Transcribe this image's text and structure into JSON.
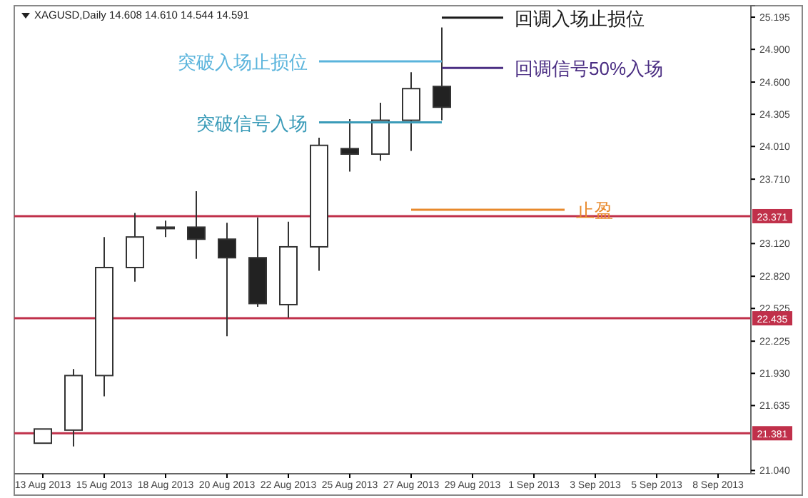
{
  "chart_data": {
    "type": "candlestick",
    "title": "XAGUSD,Daily  14.608 14.610 14.544 14.591",
    "categories": [
      "13 Aug 2013",
      null,
      "15 Aug 2013",
      null,
      "18 Aug 2013",
      null,
      "20 Aug 2013",
      null,
      "22 Aug 2013",
      null,
      "25 Aug 2013",
      null,
      "27 Aug 2013",
      null,
      "29 Aug 2013",
      null,
      "1 Sep 2013",
      null,
      "3 Sep 2013",
      null,
      "5 Sep 2013",
      null,
      "8 Sep 2013"
    ],
    "ohlc": [
      [
        21.29,
        21.42,
        21.29,
        21.42
      ],
      [
        21.41,
        21.97,
        21.26,
        21.91
      ],
      [
        21.91,
        23.18,
        21.72,
        22.9
      ],
      [
        22.9,
        23.4,
        22.77,
        23.18
      ],
      [
        23.27,
        23.33,
        23.18,
        23.27
      ],
      [
        23.27,
        23.6,
        22.98,
        23.16
      ],
      [
        23.16,
        23.31,
        22.27,
        22.99
      ],
      [
        22.99,
        23.36,
        22.54,
        22.57
      ],
      [
        22.56,
        23.32,
        22.44,
        23.09
      ],
      [
        23.09,
        24.09,
        22.87,
        24.02
      ],
      [
        23.99,
        24.26,
        23.78,
        23.94
      ],
      [
        23.94,
        24.41,
        23.88,
        24.25
      ],
      [
        24.25,
        24.69,
        23.97,
        24.54
      ],
      [
        24.56,
        25.1,
        24.25,
        24.37
      ],
      null,
      null,
      null,
      null,
      null,
      null,
      null,
      null,
      null
    ],
    "series": [
      {
        "type": "line",
        "name": "突破入场止损位",
        "color": "#5ab4dc",
        "values": [
          null,
          null,
          null,
          null,
          null,
          null,
          null,
          null,
          null,
          24.79,
          24.79,
          24.79,
          24.79,
          24.79,
          null,
          null,
          null,
          null,
          null,
          null,
          null,
          null,
          null
        ]
      },
      {
        "type": "line",
        "name": "突破信号入场",
        "color": "#3a9bb8",
        "values": [
          null,
          null,
          null,
          null,
          null,
          null,
          null,
          null,
          null,
          24.23,
          24.23,
          24.23,
          24.23,
          24.23,
          null,
          null,
          null,
          null,
          null,
          null,
          null,
          null,
          null
        ]
      },
      {
        "type": "line",
        "name": "回调入场止损位",
        "color": "#1a1a1a",
        "values": [
          null,
          null,
          null,
          null,
          null,
          null,
          null,
          null,
          null,
          null,
          null,
          null,
          null,
          25.19,
          25.19,
          25.19,
          null,
          null,
          null,
          null,
          null,
          null,
          null
        ]
      },
      {
        "type": "line",
        "name": "回调信号50%入场",
        "color": "#4b2e83",
        "values": [
          null,
          null,
          null,
          null,
          null,
          null,
          null,
          null,
          null,
          null,
          null,
          null,
          null,
          24.73,
          24.73,
          24.73,
          null,
          null,
          null,
          null,
          null,
          null,
          null
        ]
      },
      {
        "type": "line",
        "name": "止盈",
        "color": "#e8892c",
        "values": [
          null,
          null,
          null,
          null,
          null,
          null,
          null,
          null,
          null,
          null,
          null,
          null,
          23.43,
          23.43,
          23.43,
          23.43,
          23.43,
          23.43,
          null,
          null,
          null,
          null,
          null
        ]
      }
    ],
    "ref_lines": [
      {
        "axis": "y",
        "value": 23.371,
        "label": "23.371",
        "color": "#c0304a"
      },
      {
        "axis": "y",
        "value": 22.435,
        "label": "22.435",
        "color": "#c0304a"
      },
      {
        "axis": "y",
        "value": 21.381,
        "label": "21.381",
        "color": "#c0304a"
      }
    ],
    "ylim": [
      21.01,
      25.3
    ],
    "yticks": [
      {
        "value": 25.195,
        "label": "25.195"
      },
      {
        "value": 24.9,
        "label": "24.900"
      },
      {
        "value": 24.6,
        "label": "24.600"
      },
      {
        "value": 24.305,
        "label": "24.305"
      },
      {
        "value": 24.01,
        "label": "24.010"
      },
      {
        "value": 23.71,
        "label": "23.710"
      },
      {
        "value": 23.12,
        "label": "23.120"
      },
      {
        "value": 22.82,
        "label": "22.820"
      },
      {
        "value": 22.525,
        "label": "22.525"
      },
      {
        "value": 22.225,
        "label": "22.225"
      },
      {
        "value": 21.93,
        "label": "21.930"
      },
      {
        "value": 21.635,
        "label": "21.635"
      },
      {
        "value": 21.04,
        "label": "21.040"
      }
    ],
    "grid": false
  }
}
